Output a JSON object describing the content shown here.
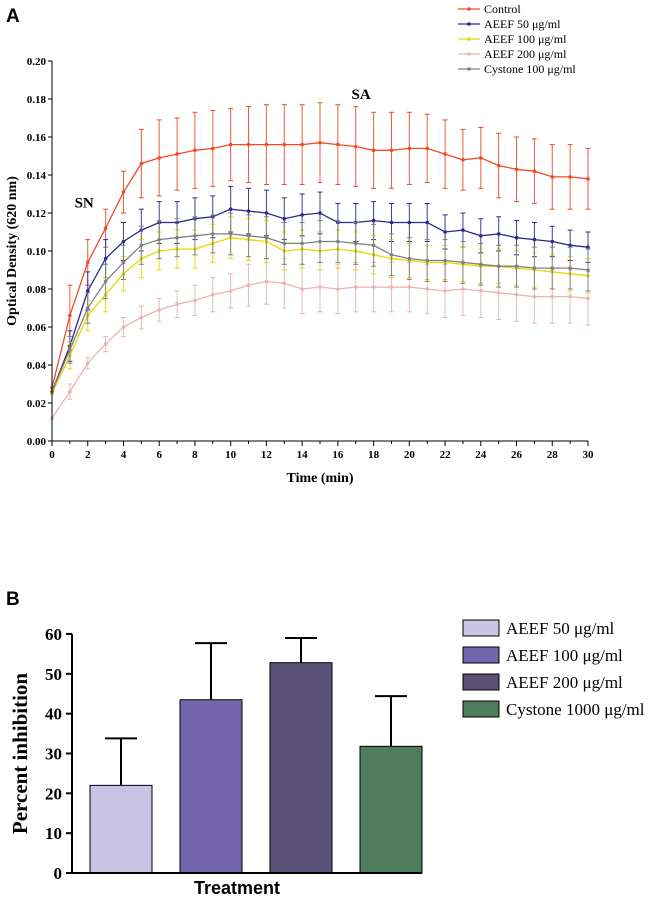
{
  "chart_data": [
    {
      "panel": "A",
      "type": "line",
      "xlabel": "Time (min)",
      "ylabel": "Optical Density (620 nm)",
      "xlim": [
        0,
        30
      ],
      "ylim": [
        0,
        0.2
      ],
      "xticks": [
        0,
        2,
        4,
        6,
        8,
        10,
        12,
        14,
        16,
        18,
        20,
        22,
        24,
        26,
        28,
        30
      ],
      "xtick_labels": [
        "0",
        "2",
        "4",
        "6",
        "8",
        "10",
        "12",
        "14",
        "16",
        "18",
        "20",
        "22",
        "24",
        "26",
        "28",
        "30"
      ],
      "yticks": [
        0,
        0.02,
        0.04,
        0.06,
        0.08,
        0.1,
        0.12,
        0.14,
        0.16,
        0.18,
        0.2
      ],
      "ytick_labels": [
        "0.00",
        "0.02",
        "0.04",
        "0.06",
        "0.08",
        "0.10",
        "0.12",
        "0.14",
        "0.16",
        "0.18",
        "0.20"
      ],
      "annotations": [
        {
          "text": "SN",
          "x": 1.8,
          "y": 0.123
        },
        {
          "text": "SA",
          "x": 17.3,
          "y": 0.18
        }
      ],
      "legend_position": "top-right",
      "x": [
        0,
        1,
        2,
        3,
        4,
        5,
        6,
        7,
        8,
        9,
        10,
        11,
        12,
        13,
        14,
        15,
        16,
        17,
        18,
        19,
        20,
        21,
        22,
        23,
        24,
        25,
        26,
        27,
        28,
        29,
        30
      ],
      "series": [
        {
          "name": "Control",
          "color": "#ee4b2b",
          "values": [
            0.028,
            0.066,
            0.094,
            0.112,
            0.131,
            0.146,
            0.149,
            0.151,
            0.153,
            0.154,
            0.156,
            0.156,
            0.156,
            0.156,
            0.156,
            0.157,
            0.156,
            0.155,
            0.153,
            0.153,
            0.154,
            0.154,
            0.151,
            0.148,
            0.149,
            0.145,
            0.143,
            0.142,
            0.139,
            0.139,
            0.138
          ],
          "errors": [
            0.0,
            0.016,
            0.012,
            0.01,
            0.011,
            0.018,
            0.02,
            0.019,
            0.02,
            0.02,
            0.019,
            0.02,
            0.021,
            0.021,
            0.021,
            0.021,
            0.021,
            0.021,
            0.02,
            0.02,
            0.019,
            0.018,
            0.018,
            0.016,
            0.016,
            0.017,
            0.017,
            0.017,
            0.017,
            0.017,
            0.016
          ]
        },
        {
          "name": "AEEF 50 μg/ml",
          "color": "#2b2b8c",
          "values": [
            0.026,
            0.05,
            0.079,
            0.096,
            0.105,
            0.111,
            0.115,
            0.115,
            0.117,
            0.118,
            0.122,
            0.121,
            0.12,
            0.117,
            0.119,
            0.12,
            0.115,
            0.115,
            0.116,
            0.115,
            0.115,
            0.115,
            0.11,
            0.111,
            0.108,
            0.109,
            0.107,
            0.106,
            0.105,
            0.103,
            0.102
          ],
          "errors": [
            0.0,
            0.008,
            0.01,
            0.01,
            0.01,
            0.011,
            0.011,
            0.011,
            0.011,
            0.011,
            0.012,
            0.012,
            0.012,
            0.011,
            0.011,
            0.011,
            0.01,
            0.01,
            0.01,
            0.01,
            0.01,
            0.01,
            0.009,
            0.009,
            0.009,
            0.009,
            0.009,
            0.009,
            0.008,
            0.008,
            0.008
          ]
        },
        {
          "name": "AEEF 100 μg/ml",
          "color": "#e6d800",
          "values": [
            0.025,
            0.045,
            0.066,
            0.077,
            0.088,
            0.096,
            0.1,
            0.101,
            0.101,
            0.104,
            0.107,
            0.106,
            0.105,
            0.1,
            0.101,
            0.1,
            0.101,
            0.1,
            0.098,
            0.096,
            0.095,
            0.094,
            0.094,
            0.093,
            0.092,
            0.092,
            0.091,
            0.09,
            0.089,
            0.088,
            0.087
          ],
          "errors": [
            0.0,
            0.007,
            0.008,
            0.009,
            0.009,
            0.01,
            0.01,
            0.01,
            0.01,
            0.01,
            0.011,
            0.011,
            0.011,
            0.01,
            0.01,
            0.01,
            0.01,
            0.01,
            0.01,
            0.01,
            0.009,
            0.009,
            0.009,
            0.009,
            0.009,
            0.009,
            0.009,
            0.009,
            0.009,
            0.009,
            0.009
          ]
        },
        {
          "name": "AEEF 200 μg/ml",
          "color": "#e8b4b4",
          "values": [
            0.012,
            0.026,
            0.041,
            0.051,
            0.06,
            0.065,
            0.069,
            0.072,
            0.074,
            0.077,
            0.079,
            0.082,
            0.084,
            0.083,
            0.08,
            0.081,
            0.08,
            0.081,
            0.081,
            0.081,
            0.081,
            0.08,
            0.079,
            0.08,
            0.079,
            0.078,
            0.077,
            0.076,
            0.076,
            0.076,
            0.075
          ],
          "errors": [
            0.0,
            0.004,
            0.003,
            0.004,
            0.005,
            0.006,
            0.006,
            0.007,
            0.008,
            0.009,
            0.009,
            0.011,
            0.012,
            0.013,
            0.013,
            0.013,
            0.013,
            0.013,
            0.013,
            0.013,
            0.013,
            0.013,
            0.014,
            0.014,
            0.014,
            0.014,
            0.014,
            0.014,
            0.014,
            0.014,
            0.014
          ]
        },
        {
          "name": "Cystone 100 μg/ml",
          "color": "#808080",
          "values": [
            0.026,
            0.048,
            0.07,
            0.084,
            0.094,
            0.103,
            0.106,
            0.107,
            0.108,
            0.109,
            0.109,
            0.108,
            0.107,
            0.104,
            0.104,
            0.105,
            0.105,
            0.104,
            0.103,
            0.098,
            0.096,
            0.095,
            0.095,
            0.094,
            0.093,
            0.092,
            0.092,
            0.091,
            0.091,
            0.091,
            0.09
          ],
          "errors": [
            0.0,
            0.007,
            0.008,
            0.009,
            0.009,
            0.01,
            0.01,
            0.01,
            0.01,
            0.01,
            0.011,
            0.011,
            0.011,
            0.011,
            0.011,
            0.011,
            0.011,
            0.011,
            0.011,
            0.011,
            0.011,
            0.011,
            0.011,
            0.011,
            0.011,
            0.011,
            0.011,
            0.011,
            0.011,
            0.011,
            0.011
          ]
        }
      ]
    },
    {
      "panel": "B",
      "type": "bar",
      "xlabel": "Treatment",
      "ylabel": "Percent inhibition",
      "ylim": [
        0,
        60
      ],
      "yticks": [
        0,
        10,
        20,
        30,
        40,
        50,
        60
      ],
      "ytick_labels": [
        "0",
        "10",
        "20",
        "30",
        "40",
        "50",
        "60"
      ],
      "legend_position": "right",
      "categories": [
        "AEEF 50 μg/ml",
        "AEEF 100 μg/ml",
        "AEEF 200 μg/ml",
        "Cystone 1000 μg/ml"
      ],
      "values": [
        22,
        43.5,
        52.8,
        31.8
      ],
      "errors": [
        11.8,
        14.2,
        6.2,
        12.6
      ],
      "colors": [
        "#c9c3e3",
        "#7466ad",
        "#5a5276",
        "#4f7c5c"
      ]
    }
  ],
  "panel_labels": {
    "a": "A",
    "b": "B"
  }
}
